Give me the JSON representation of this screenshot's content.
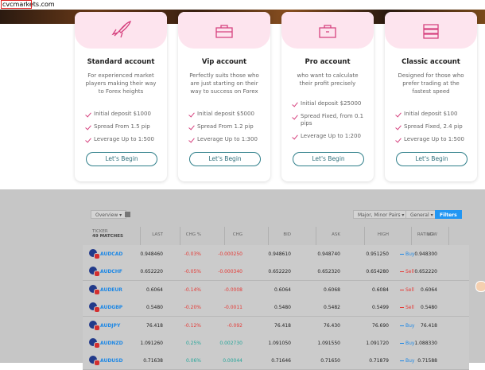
{
  "url": "cvcmarkets.com",
  "cards": [
    {
      "title": "Standard account",
      "description": "For experienced market players making their way to Forex heights",
      "features": [
        "Initial deposit $1000",
        "Spread From 1.5 pip",
        "Leverage Up to 1:500"
      ],
      "button": "Let's Begin"
    },
    {
      "title": "Vip account",
      "description": "Perfectly suits those who are just starting on their way to success on Forex",
      "features": [
        "Initial deposit $5000",
        "Spread From 1.2 pip",
        "Leverage Up to 1:300"
      ],
      "button": "Let's Begin"
    },
    {
      "title": "Pro account",
      "description": "who want to calculate their profit precisely",
      "features": [
        "Initial deposit $25000",
        "Spread Fixed, from 0.1 pips",
        "Leverage Up to 1:200"
      ],
      "button": "Let's Begin"
    },
    {
      "title": "Classic account",
      "description": "Designed for those who prefer trading at the fastest speed",
      "features": [
        "Initial deposit $100",
        "Spread Fixed, 2.4 pip",
        "Leverage Up to 1:500"
      ],
      "button": "Let's Begin"
    }
  ],
  "toolbar": {
    "view": "Overview",
    "filter": "Major, Minor Pairs",
    "preset": "General",
    "filters_button": "Filters"
  },
  "table": {
    "headers": [
      "LAST",
      "CHG %",
      "CHG",
      "BID",
      "ASK",
      "HIGH",
      "LOW",
      "RATING"
    ],
    "ticker_header": "TICKER",
    "matches": "49 MATCHES",
    "rows": [
      [
        "AUDCAD",
        "0.948460",
        "-0.03%",
        "-0.000250",
        "0.948610",
        "0.948740",
        "0.951250",
        "0.948300",
        "Buy"
      ],
      [
        "AUDCHF",
        "0.652220",
        "-0.05%",
        "-0.000340",
        "0.652220",
        "0.652320",
        "0.654280",
        "0.652220",
        "Sell"
      ],
      [
        "AUDEUR",
        "0.6064",
        "-0.14%",
        "-0.0008",
        "0.6064",
        "0.6068",
        "0.6084",
        "0.6064",
        "Sell"
      ],
      [
        "AUDGBP",
        "0.5480",
        "-0.20%",
        "-0.0011",
        "0.5480",
        "0.5482",
        "0.5499",
        "0.5480",
        "Sell"
      ],
      [
        "AUDJPY",
        "76.418",
        "-0.12%",
        "-0.092",
        "76.418",
        "76.430",
        "76.690",
        "76.418",
        "Buy"
      ],
      [
        "AUDNZD",
        "1.091260",
        "0.25%",
        "0.002730",
        "1.091050",
        "1.091550",
        "1.091720",
        "1.088330",
        "Buy"
      ],
      [
        "AUDUSD",
        "0.71638",
        "0.06%",
        "0.00044",
        "0.71646",
        "0.71650",
        "0.71879",
        "0.71588",
        "Buy"
      ]
    ]
  }
}
